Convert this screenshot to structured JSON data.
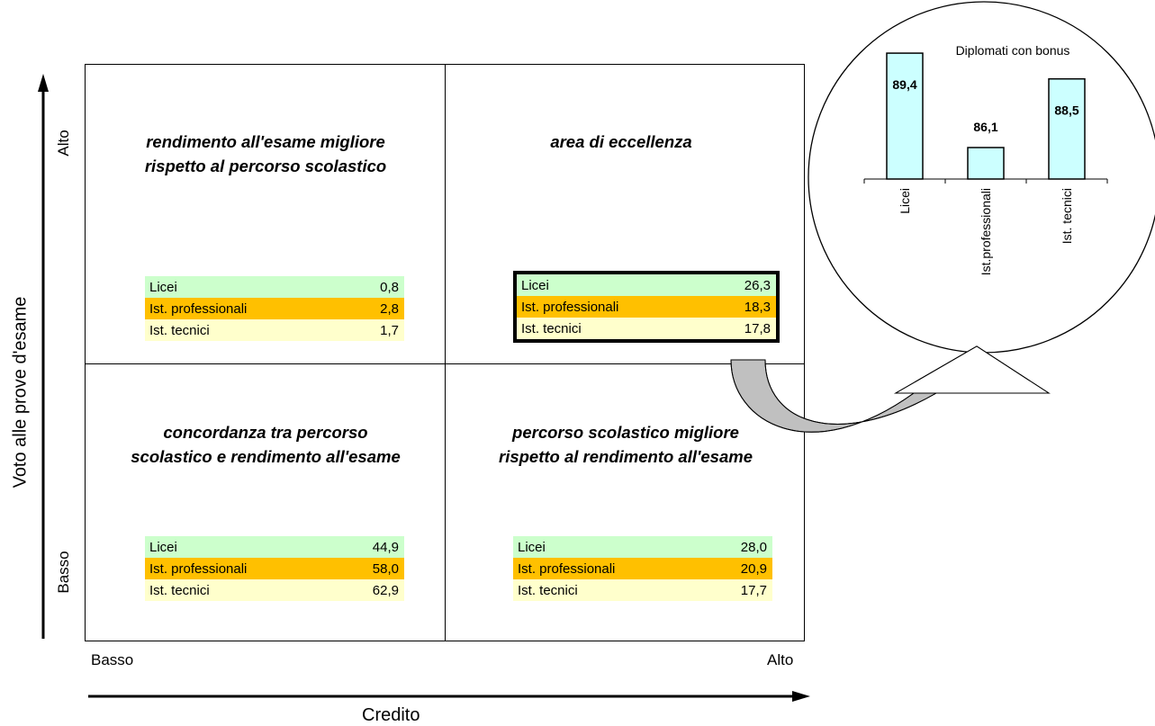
{
  "axes": {
    "y_title": "Voto alle prove d'esame",
    "y_high": "Alto",
    "y_low": "Basso",
    "x_title": "Credito",
    "x_low": "Basso",
    "x_high": "Alto"
  },
  "quadrants": {
    "top_left": {
      "title_line1": "rendimento all'esame migliore",
      "title_line2": "rispetto al percorso scolastico",
      "rows": [
        {
          "label": "Licei",
          "value": "0,8"
        },
        {
          "label": "Ist. professionali",
          "value": "2,8"
        },
        {
          "label": "Ist. tecnici",
          "value": "1,7"
        }
      ]
    },
    "top_right": {
      "title_line1": "area di eccellenza",
      "rows": [
        {
          "label": "Licei",
          "value": "26,3"
        },
        {
          "label": "Ist. professionali",
          "value": "18,3"
        },
        {
          "label": "Ist. tecnici",
          "value": "17,8"
        }
      ]
    },
    "bottom_left": {
      "title_line1": "concordanza  tra percorso",
      "title_line2": "scolastico e rendimento all'esame",
      "rows": [
        {
          "label": "Licei",
          "value": "44,9"
        },
        {
          "label": "Ist. professionali",
          "value": "58,0"
        },
        {
          "label": "Ist. tecnici",
          "value": "62,9"
        }
      ]
    },
    "bottom_right": {
      "title_line1": "percorso scolastico migliore",
      "title_line2": "rispetto al rendimento all'esame",
      "rows": [
        {
          "label": "Licei",
          "value": "28,0"
        },
        {
          "label": "Ist. professionali",
          "value": "20,9"
        },
        {
          "label": "Ist. tecnici",
          "value": "17,7"
        }
      ]
    }
  },
  "colors": {
    "licei_row": "#ccffcc",
    "professionali_row": "#ffc000",
    "tecnici_row": "#ffffcc",
    "bar_fill": "#ccffff",
    "arrow_fill": "#c0c0c0"
  },
  "chart_data": {
    "type": "bar",
    "title": "Diplomati con bonus",
    "categories": [
      "Licei",
      "Ist.professionali",
      "Ist. tecnici"
    ],
    "values": [
      89.4,
      86.1,
      88.5
    ],
    "value_labels": [
      "89,4",
      "86,1",
      "88,5"
    ],
    "ylim": [
      85,
      90
    ],
    "grid": false,
    "legend": "none"
  }
}
